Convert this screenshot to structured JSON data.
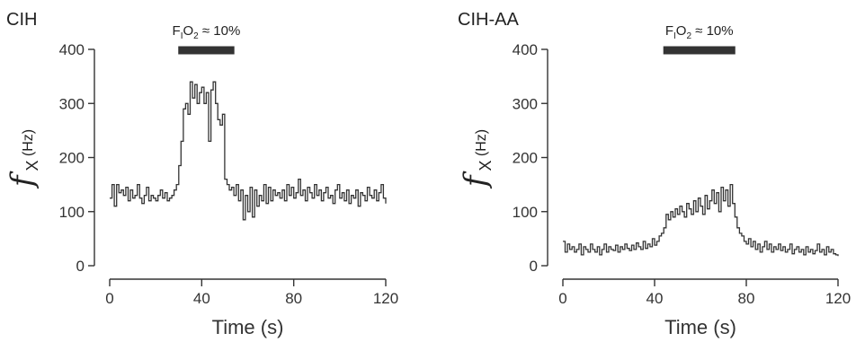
{
  "chart_data": [
    {
      "type": "line",
      "panel_label": "CIH",
      "xlabel": "Time (s)",
      "ylabel_symbol": "f",
      "ylabel_subscript": "X",
      "ylabel_unit": "(Hz)",
      "xlim": [
        0,
        120
      ],
      "ylim": [
        0,
        400
      ],
      "xticks": [
        0,
        40,
        80,
        120
      ],
      "yticks": [
        0,
        100,
        200,
        300,
        400
      ],
      "stimulus": {
        "label_main": "F",
        "label_sub": "I",
        "label_o": "O",
        "label_o_sub": "2",
        "label_rest": " ≈ 10%",
        "start": 30,
        "end": 54
      },
      "series": [
        {
          "x": [
            0,
            1,
            2,
            3,
            4,
            5,
            6,
            7,
            8,
            9,
            10,
            11,
            12,
            13,
            14,
            15,
            16,
            17,
            18,
            19,
            20,
            21,
            22,
            23,
            24,
            25,
            26,
            27,
            28,
            29,
            30,
            31,
            32,
            33,
            34,
            35,
            36,
            37,
            38,
            39,
            40,
            41,
            42,
            43,
            44,
            45,
            46,
            47,
            48,
            49,
            50,
            51,
            52,
            53,
            54,
            55,
            56,
            57,
            58,
            59,
            60,
            61,
            62,
            63,
            64,
            65,
            66,
            67,
            68,
            69,
            70,
            71,
            72,
            73,
            74,
            75,
            76,
            77,
            78,
            79,
            80,
            81,
            82,
            83,
            84,
            85,
            86,
            87,
            88,
            89,
            90,
            91,
            92,
            93,
            94,
            95,
            96,
            97,
            98,
            99,
            100,
            101,
            102,
            103,
            104,
            105,
            106,
            107,
            108,
            109,
            110,
            111,
            112,
            113,
            114,
            115,
            116,
            117,
            118,
            119,
            120
          ],
          "y": [
            125,
            150,
            110,
            150,
            135,
            140,
            130,
            145,
            120,
            140,
            125,
            130,
            150,
            125,
            115,
            130,
            145,
            120,
            130,
            125,
            120,
            130,
            140,
            125,
            135,
            120,
            125,
            130,
            140,
            150,
            185,
            230,
            290,
            300,
            280,
            340,
            310,
            335,
            300,
            320,
            330,
            300,
            320,
            230,
            325,
            340,
            300,
            270,
            260,
            280,
            160,
            150,
            140,
            145,
            130,
            150,
            120,
            140,
            85,
            130,
            100,
            145,
            90,
            140,
            110,
            130,
            120,
            150,
            115,
            145,
            120,
            140,
            130,
            135,
            125,
            140,
            120,
            150,
            130,
            145,
            125,
            135,
            160,
            130,
            140,
            120,
            145,
            135,
            125,
            150,
            130,
            140,
            120,
            135,
            145,
            125,
            130,
            115,
            140,
            150,
            125,
            135,
            120,
            140,
            115,
            130,
            125,
            140,
            110,
            135,
            130,
            120,
            145,
            130,
            125,
            140,
            120,
            135,
            150,
            125,
            115
          ]
        }
      ]
    },
    {
      "type": "line",
      "panel_label": "CIH-AA",
      "xlabel": "Time (s)",
      "ylabel_symbol": "f",
      "ylabel_subscript": "X",
      "ylabel_unit": "(Hz)",
      "xlim": [
        0,
        120
      ],
      "ylim": [
        0,
        400
      ],
      "xticks": [
        0,
        40,
        80,
        120
      ],
      "yticks": [
        0,
        100,
        200,
        300,
        400
      ],
      "stimulus": {
        "label_main": "F",
        "label_sub": "I",
        "label_o": "O",
        "label_o_sub": "2",
        "label_rest": " ≈ 10%",
        "start": 44,
        "end": 75
      },
      "series": [
        {
          "x": [
            0,
            1,
            2,
            3,
            4,
            5,
            6,
            7,
            8,
            9,
            10,
            11,
            12,
            13,
            14,
            15,
            16,
            17,
            18,
            19,
            20,
            21,
            22,
            23,
            24,
            25,
            26,
            27,
            28,
            29,
            30,
            31,
            32,
            33,
            34,
            35,
            36,
            37,
            38,
            39,
            40,
            41,
            42,
            43,
            44,
            45,
            46,
            47,
            48,
            49,
            50,
            51,
            52,
            53,
            54,
            55,
            56,
            57,
            58,
            59,
            60,
            61,
            62,
            63,
            64,
            65,
            66,
            67,
            68,
            69,
            70,
            71,
            72,
            73,
            74,
            75,
            76,
            77,
            78,
            79,
            80,
            81,
            82,
            83,
            84,
            85,
            86,
            87,
            88,
            89,
            90,
            91,
            92,
            93,
            94,
            95,
            96,
            97,
            98,
            99,
            100,
            101,
            102,
            103,
            104,
            105,
            106,
            107,
            108,
            109,
            110,
            111,
            112,
            113,
            114,
            115,
            116,
            117,
            118,
            119,
            120
          ],
          "y": [
            45,
            25,
            40,
            30,
            35,
            25,
            30,
            40,
            20,
            35,
            30,
            25,
            40,
            30,
            25,
            35,
            20,
            30,
            40,
            25,
            35,
            30,
            28,
            38,
            25,
            35,
            30,
            40,
            32,
            28,
            38,
            30,
            42,
            35,
            30,
            45,
            32,
            40,
            35,
            50,
            38,
            45,
            55,
            60,
            70,
            95,
            85,
            100,
            90,
            105,
            95,
            110,
            100,
            90,
            115,
            105,
            95,
            120,
            100,
            125,
            110,
            95,
            130,
            105,
            120,
            140,
            115,
            135,
            100,
            145,
            120,
            140,
            110,
            150,
            115,
            90,
            70,
            60,
            55,
            45,
            40,
            50,
            35,
            45,
            30,
            40,
            25,
            35,
            45,
            30,
            40,
            25,
            35,
            30,
            40,
            28,
            35,
            25,
            30,
            40,
            22,
            30,
            35,
            25,
            30,
            20,
            35,
            25,
            30,
            22,
            28,
            40,
            25,
            30,
            20,
            35,
            25,
            30,
            22,
            20,
            18
          ]
        }
      ]
    }
  ]
}
